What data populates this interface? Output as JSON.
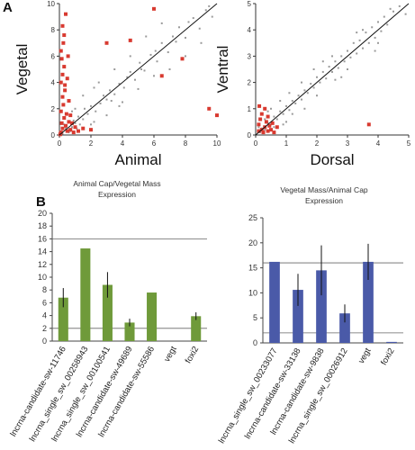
{
  "panel_labels": {
    "a": "A",
    "b": "B"
  },
  "titles": {
    "bar1": [
      "Animal Cap/Vegetal Mass",
      "Expression"
    ],
    "bar2": [
      "Vegetal Mass/Animal Cap",
      "Expression"
    ]
  },
  "colors": {
    "scatter_gray": "#9a9a9a",
    "scatter_red": "#d83a30",
    "bar_green": "#6f9a3a",
    "bar_blue": "#4a5aa8",
    "fit_line": "#111111"
  },
  "chart_data": [
    {
      "type": "scatter",
      "xlabel": "Animal",
      "ylabel": "Vegetal",
      "xlim": [
        0,
        10
      ],
      "ylim": [
        0,
        10
      ],
      "xticks": [
        0,
        2,
        4,
        6,
        8,
        10
      ],
      "yticks": [
        0,
        2,
        4,
        6,
        8,
        10
      ],
      "diagonal": true,
      "series": [
        {
          "color": "gray",
          "points": [
            [
              0.5,
              0.3
            ],
            [
              0.8,
              0.6
            ],
            [
              1.0,
              0.9
            ],
            [
              1.2,
              1.4
            ],
            [
              1.5,
              1.2
            ],
            [
              1.8,
              1.6
            ],
            [
              2.0,
              2.2
            ],
            [
              2.3,
              1.8
            ],
            [
              2.6,
              2.4
            ],
            [
              3.0,
              2.7
            ],
            [
              3.2,
              3.4
            ],
            [
              3.5,
              3.1
            ],
            [
              3.8,
              3.9
            ],
            [
              4.1,
              3.6
            ],
            [
              4.5,
              4.8
            ],
            [
              4.8,
              4.2
            ],
            [
              5.1,
              5.5
            ],
            [
              5.4,
              4.9
            ],
            [
              5.8,
              6.1
            ],
            [
              6.2,
              5.6
            ],
            [
              6.5,
              7.0
            ],
            [
              6.9,
              6.3
            ],
            [
              7.2,
              7.5
            ],
            [
              7.6,
              8.2
            ],
            [
              8.0,
              7.4
            ],
            [
              8.5,
              8.9
            ],
            [
              8.9,
              8.1
            ],
            [
              9.3,
              9.5
            ],
            [
              9.7,
              9.0
            ],
            [
              1.5,
              3.0
            ],
            [
              2.5,
              4.0
            ],
            [
              3.0,
              1.5
            ],
            [
              4.0,
              2.5
            ],
            [
              0.3,
              0.8
            ],
            [
              0.6,
              0.2
            ],
            [
              1.1,
              0.5
            ],
            [
              2.2,
              1.0
            ],
            [
              1.0,
              2.0
            ],
            [
              3.5,
              5.0
            ],
            [
              5.0,
              3.5
            ],
            [
              6.0,
              4.5
            ],
            [
              4.5,
              6.0
            ],
            [
              7.0,
              5.0
            ],
            [
              5.5,
              7.5
            ],
            [
              8.0,
              6.0
            ],
            [
              6.5,
              8.5
            ],
            [
              9.0,
              7.0
            ],
            [
              0.2,
              0.1
            ],
            [
              0.4,
              0.5
            ],
            [
              0.7,
              0.3
            ],
            [
              0.9,
              1.1
            ],
            [
              1.3,
              0.8
            ],
            [
              1.6,
              2.0
            ],
            [
              2.8,
              3.0
            ],
            [
              3.3,
              2.6
            ],
            [
              4.3,
              4.4
            ],
            [
              5.2,
              5.0
            ],
            [
              6.1,
              6.4
            ],
            [
              7.4,
              7.1
            ],
            [
              8.2,
              8.6
            ],
            [
              9.5,
              9.8
            ],
            [
              2.0,
              0.8
            ],
            [
              0.8,
              1.8
            ],
            [
              3.8,
              2.2
            ],
            [
              2.2,
              3.6
            ]
          ]
        },
        {
          "color": "red",
          "points": [
            [
              0.1,
              0.2
            ],
            [
              0.2,
              0.5
            ],
            [
              0.15,
              0.9
            ],
            [
              0.3,
              1.3
            ],
            [
              0.1,
              1.8
            ],
            [
              0.25,
              2.3
            ],
            [
              0.2,
              2.9
            ],
            [
              0.35,
              3.4
            ],
            [
              0.1,
              4.0
            ],
            [
              0.2,
              4.6
            ],
            [
              0.3,
              5.2
            ],
            [
              0.15,
              5.8
            ],
            [
              0.1,
              6.4
            ],
            [
              0.25,
              7.0
            ],
            [
              0.4,
              0.7
            ],
            [
              0.5,
              0.3
            ],
            [
              0.6,
              1.0
            ],
            [
              0.45,
              1.6
            ],
            [
              0.7,
              0.4
            ],
            [
              0.8,
              0.9
            ],
            [
              0.9,
              0.2
            ],
            [
              1.0,
              0.6
            ],
            [
              0.3,
              7.6
            ],
            [
              0.5,
              4.3
            ],
            [
              0.6,
              2.6
            ],
            [
              0.2,
              8.3
            ],
            [
              0.4,
              9.2
            ],
            [
              0.35,
              3.8
            ],
            [
              0.55,
              6.0
            ],
            [
              1.2,
              0.3
            ],
            [
              1.5,
              0.5
            ],
            [
              2.0,
              0.4
            ],
            [
              0.05,
              0.05
            ],
            [
              3.0,
              7.0
            ],
            [
              6.5,
              4.5
            ],
            [
              9.5,
              2.0
            ],
            [
              10.0,
              1.5
            ],
            [
              7.8,
              5.8
            ],
            [
              4.5,
              7.2
            ],
            [
              6.0,
              9.6
            ],
            [
              0.7,
              1.5
            ]
          ]
        }
      ]
    },
    {
      "type": "scatter",
      "xlabel": "Dorsal",
      "ylabel": "Ventral",
      "xlim": [
        0,
        5
      ],
      "ylim": [
        0,
        5
      ],
      "xticks": [
        0,
        1,
        2,
        3,
        4,
        5
      ],
      "yticks": [
        0,
        1,
        2,
        3,
        4,
        5
      ],
      "diagonal": true,
      "series": [
        {
          "color": "gray",
          "points": [
            [
              0.2,
              0.25
            ],
            [
              0.3,
              0.2
            ],
            [
              0.4,
              0.45
            ],
            [
              0.5,
              0.4
            ],
            [
              0.6,
              0.7
            ],
            [
              0.7,
              0.6
            ],
            [
              0.8,
              0.9
            ],
            [
              0.9,
              0.8
            ],
            [
              1.0,
              1.1
            ],
            [
              1.1,
              0.95
            ],
            [
              1.2,
              1.3
            ],
            [
              1.3,
              1.2
            ],
            [
              1.4,
              1.5
            ],
            [
              1.5,
              1.35
            ],
            [
              1.6,
              1.7
            ],
            [
              1.7,
              1.6
            ],
            [
              1.8,
              1.95
            ],
            [
              1.9,
              1.8
            ],
            [
              2.0,
              2.2
            ],
            [
              2.1,
              2.0
            ],
            [
              2.2,
              2.4
            ],
            [
              2.3,
              2.15
            ],
            [
              2.4,
              2.6
            ],
            [
              2.5,
              2.4
            ],
            [
              2.6,
              2.8
            ],
            [
              2.7,
              2.55
            ],
            [
              2.8,
              3.0
            ],
            [
              2.9,
              2.8
            ],
            [
              3.0,
              3.2
            ],
            [
              3.1,
              2.95
            ],
            [
              3.2,
              3.5
            ],
            [
              3.3,
              3.1
            ],
            [
              3.4,
              3.6
            ],
            [
              3.5,
              3.3
            ],
            [
              3.6,
              3.9
            ],
            [
              3.7,
              3.5
            ],
            [
              3.8,
              4.1
            ],
            [
              3.9,
              3.7
            ],
            [
              4.0,
              4.3
            ],
            [
              4.1,
              3.95
            ],
            [
              4.2,
              4.5
            ],
            [
              4.3,
              4.2
            ],
            [
              4.5,
              4.7
            ],
            [
              4.7,
              4.9
            ],
            [
              4.9,
              4.6
            ],
            [
              0.5,
              1.0
            ],
            [
              1.0,
              0.5
            ],
            [
              1.5,
              2.0
            ],
            [
              2.0,
              1.5
            ],
            [
              2.5,
              3.0
            ],
            [
              3.0,
              2.5
            ],
            [
              0.3,
              0.6
            ],
            [
              0.6,
              0.3
            ],
            [
              1.2,
              0.8
            ],
            [
              0.8,
              1.3
            ],
            [
              2.2,
              2.8
            ],
            [
              2.8,
              2.2
            ],
            [
              3.5,
              4.0
            ],
            [
              4.0,
              3.5
            ],
            [
              0.15,
              0.1
            ],
            [
              0.1,
              0.3
            ],
            [
              1.9,
              2.5
            ],
            [
              2.6,
              2.1
            ],
            [
              3.3,
              3.9
            ],
            [
              3.9,
              3.2
            ],
            [
              4.4,
              4.8
            ],
            [
              1.1,
              1.6
            ],
            [
              1.6,
              1.0
            ],
            [
              0.9,
              0.4
            ],
            [
              0.4,
              0.9
            ]
          ]
        },
        {
          "color": "red",
          "points": [
            [
              0.1,
              0.4
            ],
            [
              0.2,
              0.2
            ],
            [
              0.15,
              0.6
            ],
            [
              0.3,
              0.3
            ],
            [
              0.25,
              0.1
            ],
            [
              0.4,
              0.15
            ],
            [
              0.35,
              0.5
            ],
            [
              0.5,
              0.2
            ],
            [
              0.2,
              0.8
            ],
            [
              0.3,
              1.0
            ],
            [
              0.45,
              0.35
            ],
            [
              3.7,
              0.4
            ],
            [
              0.1,
              0.15
            ],
            [
              0.6,
              0.1
            ],
            [
              0.55,
              0.45
            ],
            [
              0.12,
              1.1
            ],
            [
              0.4,
              0.7
            ],
            [
              0.7,
              0.3
            ]
          ]
        }
      ]
    },
    {
      "type": "bar",
      "title": "Animal Cap/Vegetal Mass Expression",
      "categories": [
        "lncrna-candidate-sw-11746",
        "lncrna_single_sw_00258943",
        "lncrna_single_sw_00100541",
        "lncrna-candidate-sw-49689",
        "lncrna-candidate-sw-55586",
        "vegt",
        "foxi2"
      ],
      "values": [
        6.8,
        14.5,
        8.8,
        2.9,
        7.6,
        0,
        3.9
      ],
      "errors": [
        1.5,
        0,
        2.0,
        0.6,
        0,
        0,
        0.6
      ],
      "ylim": [
        0,
        20
      ],
      "yticks": [
        0,
        2,
        4,
        6,
        8,
        10,
        12,
        14,
        16,
        18,
        20
      ],
      "reference_lines": [
        2,
        16
      ],
      "color": "green"
    },
    {
      "type": "bar",
      "title": "Vegetal Mass/Animal Cap Expression",
      "categories": [
        "lncrna_single_sw_00233077",
        "lncrna-candidate-sw-33138",
        "lncrna-candidate-sw-9838",
        "lncrna_single_sw_00026912",
        "vegt",
        "foxi2"
      ],
      "values": [
        16.2,
        10.6,
        14.5,
        5.9,
        16.2,
        0.2
      ],
      "errors": [
        0,
        3.2,
        5.0,
        1.8,
        3.6,
        0
      ],
      "ylim": [
        0,
        25
      ],
      "yticks": [
        0,
        5,
        10,
        15,
        20,
        25
      ],
      "reference_lines": [
        2,
        16
      ],
      "color": "blue"
    }
  ]
}
